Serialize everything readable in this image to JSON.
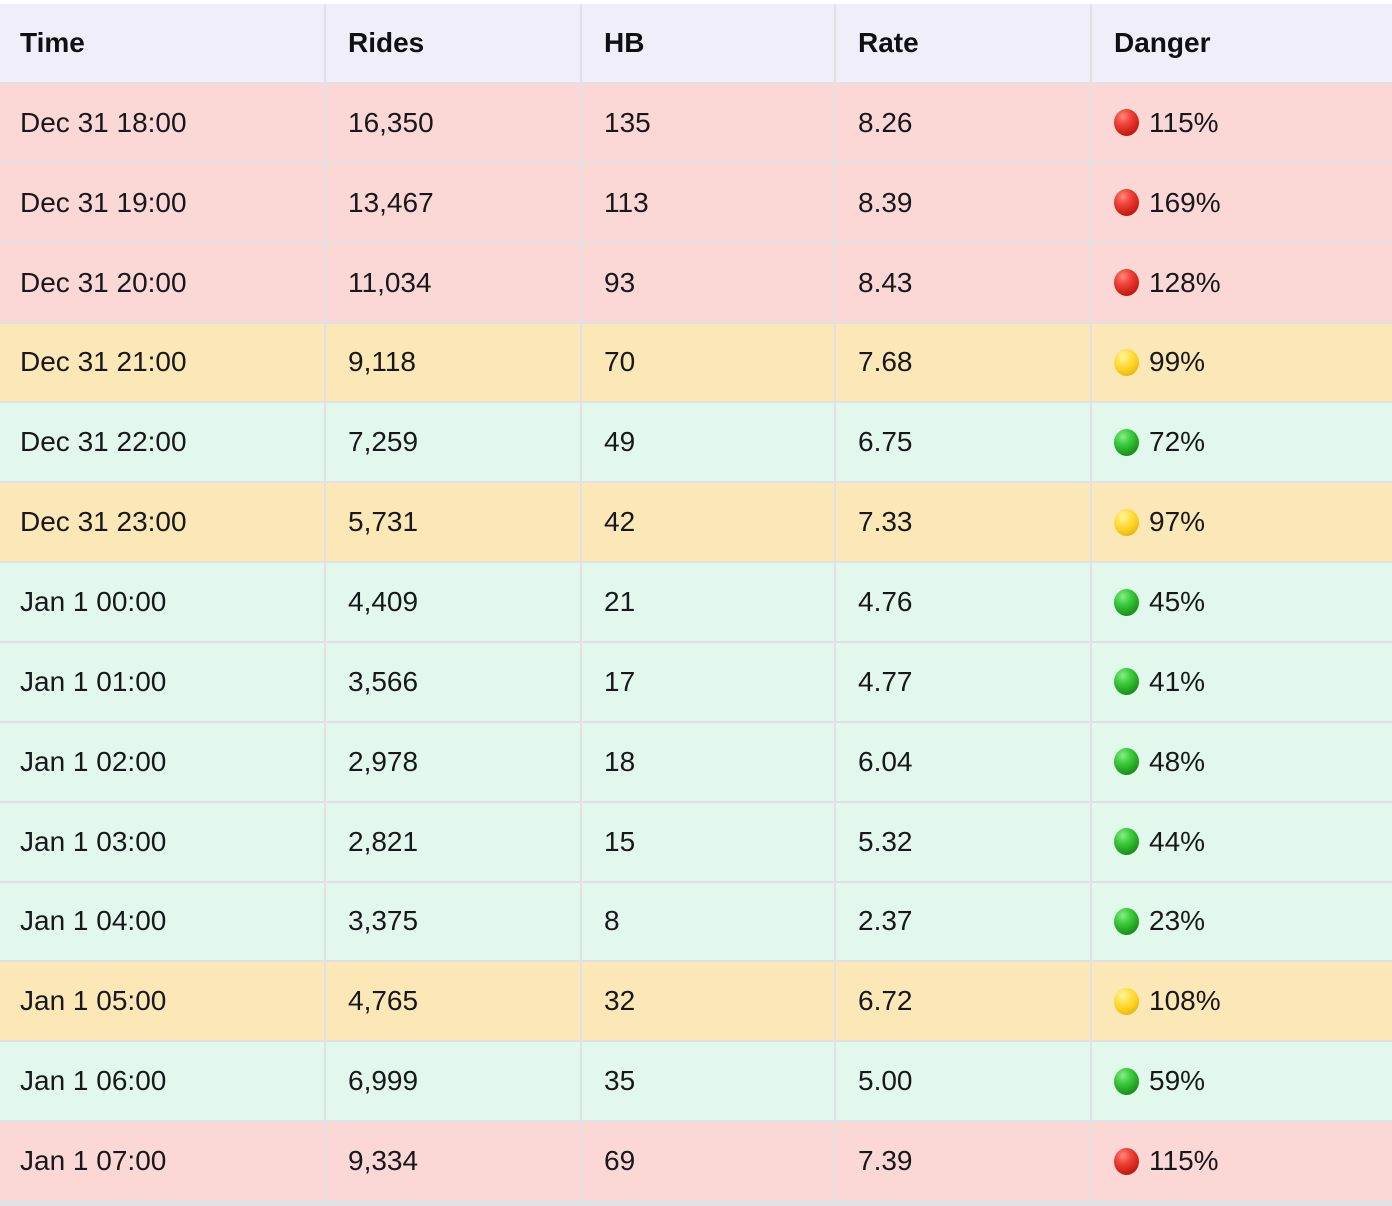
{
  "colors": {
    "header_bg": "#f0eff9",
    "row_red_bg": "#fbd7d6",
    "row_yellow_bg": "#fce7b7",
    "row_green_bg": "#e2f8ec",
    "gridline": "#e1e0e5",
    "dot_red": "#d92a22",
    "dot_yellow": "#fcd01d",
    "dot_green": "#26ae26",
    "text": "#17181b"
  },
  "chart_data": {
    "type": "table",
    "columns": [
      "Time",
      "Rides",
      "HB",
      "Rate",
      "Danger"
    ],
    "rows": [
      {
        "time": "Dec 31 18:00",
        "rides": "16,350",
        "hb": "135",
        "rate": "8.26",
        "danger": "115%",
        "severity": "red"
      },
      {
        "time": "Dec 31 19:00",
        "rides": "13,467",
        "hb": "113",
        "rate": "8.39",
        "danger": "169%",
        "severity": "red"
      },
      {
        "time": "Dec 31 20:00",
        "rides": "11,034",
        "hb": "93",
        "rate": "8.43",
        "danger": "128%",
        "severity": "red"
      },
      {
        "time": "Dec 31 21:00",
        "rides": "9,118",
        "hb": "70",
        "rate": "7.68",
        "danger": "99%",
        "severity": "yellow"
      },
      {
        "time": "Dec 31 22:00",
        "rides": "7,259",
        "hb": "49",
        "rate": "6.75",
        "danger": "72%",
        "severity": "green"
      },
      {
        "time": "Dec 31 23:00",
        "rides": "5,731",
        "hb": "42",
        "rate": "7.33",
        "danger": "97%",
        "severity": "yellow"
      },
      {
        "time": "Jan 1 00:00",
        "rides": "4,409",
        "hb": "21",
        "rate": "4.76",
        "danger": "45%",
        "severity": "green"
      },
      {
        "time": "Jan 1 01:00",
        "rides": "3,566",
        "hb": "17",
        "rate": "4.77",
        "danger": "41%",
        "severity": "green"
      },
      {
        "time": "Jan 1 02:00",
        "rides": "2,978",
        "hb": "18",
        "rate": "6.04",
        "danger": "48%",
        "severity": "green"
      },
      {
        "time": "Jan 1 03:00",
        "rides": "2,821",
        "hb": "15",
        "rate": "5.32",
        "danger": "44%",
        "severity": "green"
      },
      {
        "time": "Jan 1 04:00",
        "rides": "3,375",
        "hb": "8",
        "rate": "2.37",
        "danger": "23%",
        "severity": "green"
      },
      {
        "time": "Jan 1 05:00",
        "rides": "4,765",
        "hb": "32",
        "rate": "6.72",
        "danger": "108%",
        "severity": "yellow"
      },
      {
        "time": "Jan 1 06:00",
        "rides": "6,999",
        "hb": "35",
        "rate": "5.00",
        "danger": "59%",
        "severity": "green"
      },
      {
        "time": "Jan 1 07:00",
        "rides": "9,334",
        "hb": "69",
        "rate": "7.39",
        "danger": "115%",
        "severity": "red"
      }
    ]
  }
}
